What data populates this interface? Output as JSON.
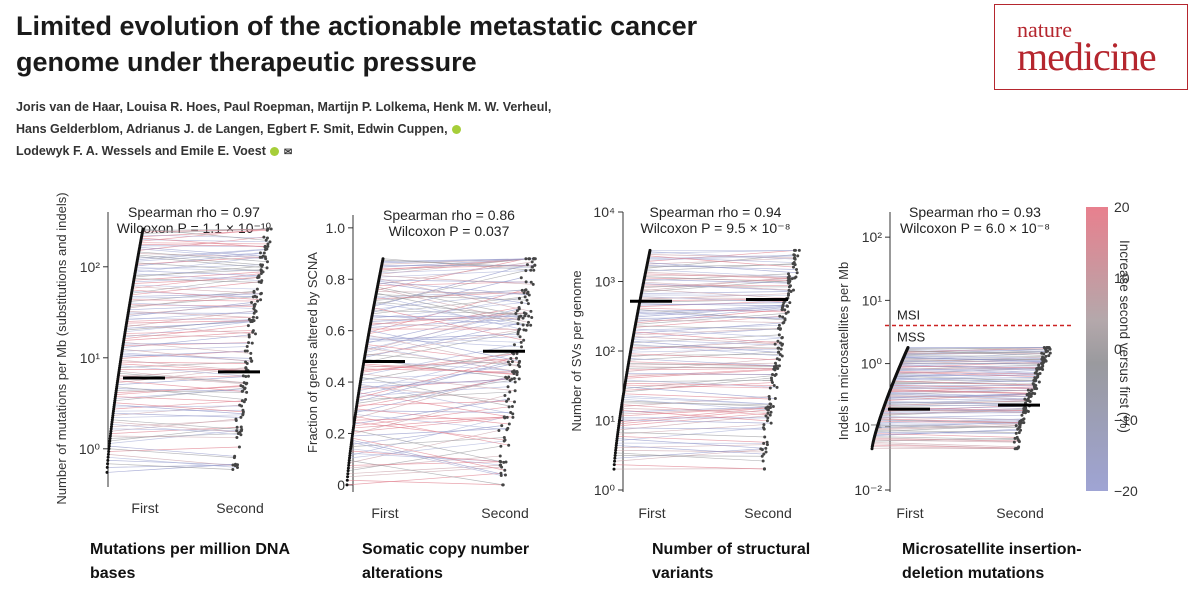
{
  "header": {
    "title": "Limited evolution of the actionable metastatic cancer genome under therapeutic pressure",
    "logo_line1": "nature",
    "logo_line2": "medicine",
    "authors_line1": "Joris van de Haar, Louisa R. Hoes, Paul Roepman, Martijn P. Lolkema, Henk M. W. Verheul,",
    "authors_line2": "Hans Gelderblom, Adrianus J. de Langen, Egbert F. Smit, Edwin Cuppen,",
    "authors_line3": "Lodewyk F. A. Wessels and Emile E. Voest"
  },
  "colors": {
    "high": "#e8808e",
    "mid": "#999999",
    "low": "#9fa4d4",
    "msi_line": "#cc2222",
    "brand": "#b5262e"
  },
  "colorbar": {
    "title": "Increase second versus first (%)",
    "ticks": [
      "20",
      "10",
      "0",
      "−10",
      "−20"
    ],
    "min": -20,
    "max": 20
  },
  "chart_data": [
    {
      "type": "scatter",
      "panel": "mutations",
      "caption": "Mutations per million DNA bases",
      "ylabel": "Number of mutations per Mb (substitutions and indels)",
      "categories": [
        "First",
        "Second"
      ],
      "yscale": "log",
      "ylim": [
        0.4,
        400
      ],
      "ytick_labels": [
        "10⁰",
        "10¹",
        "10²"
      ],
      "ytick_values": [
        1,
        10,
        100
      ],
      "stat_line1": "Spearman rho = 0.97",
      "stat_line2": "Wilcoxon P = 1.1 × 10⁻¹⁰",
      "medians": [
        6.0,
        7.0
      ],
      "range_min": 0.55,
      "range_max": 260,
      "legend": "none",
      "grid": false
    },
    {
      "type": "scatter",
      "panel": "scna",
      "caption": "Somatic copy number alterations",
      "ylabel": "Fraction of genes altered by SCNA",
      "categories": [
        "First",
        "Second"
      ],
      "yscale": "linear",
      "ylim": [
        -0.02,
        1.05
      ],
      "ytick_labels": [
        "0",
        "0.2",
        "0.4",
        "0.6",
        "0.8",
        "1.0"
      ],
      "ytick_values": [
        0,
        0.2,
        0.4,
        0.6,
        0.8,
        1.0
      ],
      "stat_line1": "Spearman rho = 0.86",
      "stat_line2": "Wilcoxon P = 0.037",
      "medians": [
        0.48,
        0.52
      ],
      "range_min": 0.0,
      "range_max": 0.88,
      "legend": "none",
      "grid": false
    },
    {
      "type": "scatter",
      "panel": "sv",
      "caption": "Number of structural variants",
      "ylabel": "Number of SVs per genome",
      "categories": [
        "First",
        "Second"
      ],
      "yscale": "log",
      "ylim": [
        1,
        10000
      ],
      "ytick_labels": [
        "10⁰",
        "10¹",
        "10²",
        "10³",
        "10⁴"
      ],
      "ytick_values": [
        1,
        10,
        100,
        1000,
        10000
      ],
      "stat_line1": "Spearman rho = 0.94",
      "stat_line2": "Wilcoxon P = 9.5 × 10⁻⁸",
      "medians": [
        520,
        550
      ],
      "range_min": 2,
      "range_max": 2800,
      "legend": "none",
      "grid": false
    },
    {
      "type": "scatter",
      "panel": "msi",
      "caption": "Microsatellite insertion-deletion mutations",
      "ylabel": "Indels in microsatellites per Mb",
      "categories": [
        "First",
        "Second"
      ],
      "yscale": "log",
      "ylim": [
        0.01,
        250
      ],
      "ytick_labels": [
        "10⁻²",
        "10⁻¹",
        "10⁰",
        "10¹",
        "10²"
      ],
      "ytick_values": [
        0.01,
        0.1,
        1,
        10,
        100
      ],
      "stat_line1": "Spearman rho = 0.93",
      "stat_line2": "Wilcoxon P = 6.0 × 10⁻⁸",
      "medians": [
        0.19,
        0.22
      ],
      "range_min": 0.045,
      "range_max": 1.8,
      "threshold": 4.0,
      "threshold_labels": [
        "MSI",
        "MSS"
      ],
      "legend": "none",
      "grid": false
    }
  ]
}
